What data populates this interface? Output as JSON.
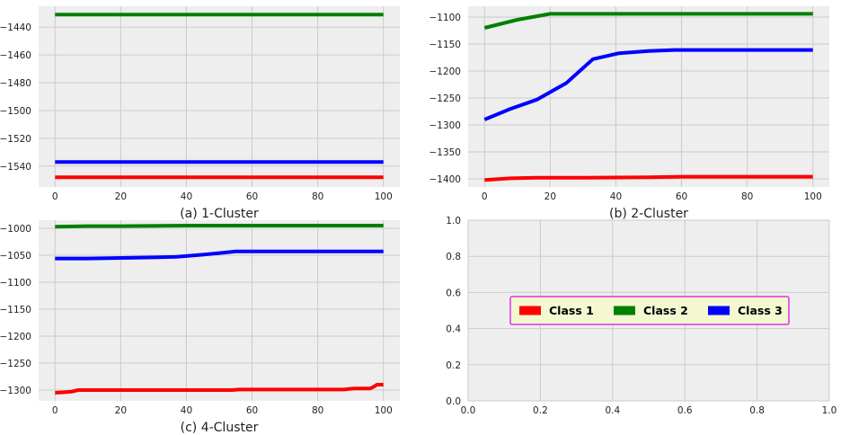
{
  "colors": {
    "axes_bg": "#eeeeee",
    "grid": "#cbcbcb",
    "Class 1": "#ff0000",
    "Class 2": "#008000",
    "Class 3": "#0000ff",
    "legend_bg": "#f3f8d0",
    "legend_border": "#e030e0"
  },
  "chart_data": [
    {
      "type": "line",
      "caption": "(a) 1-Cluster",
      "xlim": [
        -5,
        105
      ],
      "ylim": [
        -1555,
        -1425
      ],
      "xticks": [
        0,
        20,
        40,
        60,
        80,
        100
      ],
      "yticks": [
        -1540,
        -1520,
        -1500,
        -1480,
        -1460,
        -1440
      ],
      "grid": true,
      "series": [
        {
          "name": "Class 1",
          "x": [
            0,
            100
          ],
          "y": [
            -1548,
            -1548
          ]
        },
        {
          "name": "Class 2",
          "x": [
            0,
            100
          ],
          "y": [
            -1431,
            -1431
          ]
        },
        {
          "name": "Class 3",
          "x": [
            0,
            100
          ],
          "y": [
            -1537,
            -1537
          ]
        }
      ]
    },
    {
      "type": "line",
      "caption": "(b) 2-Cluster",
      "xlim": [
        -5,
        105
      ],
      "ylim": [
        -1415,
        -1080
      ],
      "xticks": [
        0,
        20,
        40,
        60,
        80,
        100
      ],
      "yticks": [
        -1400,
        -1350,
        -1300,
        -1250,
        -1200,
        -1150,
        -1100
      ],
      "grid": true,
      "series": [
        {
          "name": "Class 1",
          "x": [
            0,
            8,
            16,
            30,
            50,
            60,
            80,
            100
          ],
          "y": [
            -1402,
            -1399,
            -1398,
            -1398,
            -1397,
            -1396,
            -1396,
            -1396
          ]
        },
        {
          "name": "Class 2",
          "x": [
            0,
            10,
            20,
            40,
            60,
            80,
            100
          ],
          "y": [
            -1120,
            -1105,
            -1094,
            -1094,
            -1094,
            -1094,
            -1094
          ]
        },
        {
          "name": "Class 3",
          "x": [
            0,
            8,
            16,
            25,
            33,
            41,
            50,
            58,
            70,
            80,
            90,
            100
          ],
          "y": [
            -1290,
            -1270,
            -1253,
            -1222,
            -1178,
            -1167,
            -1163,
            -1161,
            -1161,
            -1161,
            -1161,
            -1161
          ]
        }
      ]
    },
    {
      "type": "line",
      "caption": "(c) 4-Cluster",
      "xlim": [
        -5,
        105
      ],
      "ylim": [
        -1320,
        -985
      ],
      "xticks": [
        0,
        20,
        40,
        60,
        80,
        100
      ],
      "yticks": [
        -1300,
        -1250,
        -1200,
        -1150,
        -1100,
        -1050,
        -1000
      ],
      "grid": true,
      "series": [
        {
          "name": "Class 1",
          "x": [
            0,
            3,
            5,
            7,
            20,
            40,
            54,
            56,
            60,
            80,
            88,
            91,
            96,
            97,
            98,
            100
          ],
          "y": [
            -1305,
            -1304,
            -1303,
            -1300,
            -1300,
            -1300,
            -1300,
            -1299,
            -1299,
            -1299,
            -1299,
            -1297,
            -1297,
            -1294,
            -1290,
            -1290
          ]
        },
        {
          "name": "Class 2",
          "x": [
            0,
            10,
            20,
            40,
            55,
            70,
            85,
            100
          ],
          "y": [
            -997,
            -996,
            -996,
            -995,
            -995,
            -995,
            -995,
            -995
          ]
        },
        {
          "name": "Class 3",
          "x": [
            0,
            10,
            20,
            30,
            37,
            45,
            50,
            55,
            60,
            70,
            80,
            90,
            100
          ],
          "y": [
            -1056,
            -1056,
            -1055,
            -1054,
            -1053,
            -1049,
            -1046,
            -1043,
            -1043,
            -1043,
            -1043,
            -1043,
            -1043
          ]
        }
      ]
    },
    {
      "type": "line",
      "caption": "",
      "xlim": [
        0,
        1
      ],
      "ylim": [
        0,
        1
      ],
      "xticks": [
        0.0,
        0.2,
        0.4,
        0.6,
        0.8,
        1.0
      ],
      "yticks": [
        0.0,
        0.2,
        0.4,
        0.6,
        0.8,
        1.0
      ],
      "tick_labels_x": [
        "0.0",
        "0.2",
        "0.4",
        "0.6",
        "0.8",
        "1.0"
      ],
      "tick_labels_y": [
        "0.0",
        "0.2",
        "0.4",
        "0.6",
        "0.8",
        "1.0"
      ],
      "grid": true,
      "series": [],
      "legend": {
        "placement": "center",
        "entries": [
          "Class 1",
          "Class 2",
          "Class 3"
        ]
      }
    }
  ]
}
